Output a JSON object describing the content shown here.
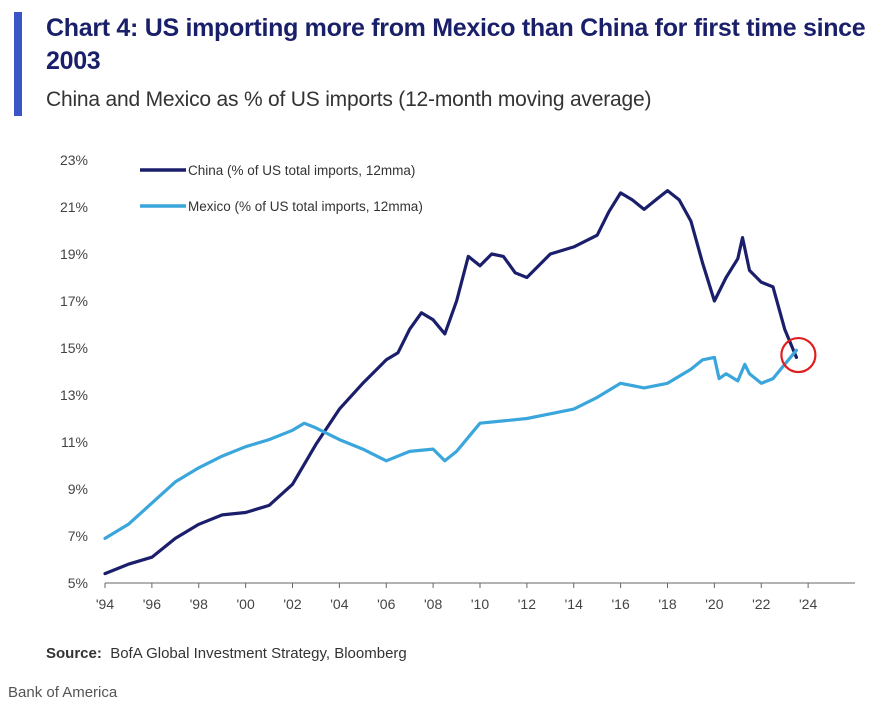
{
  "header": {
    "title": "Chart 4: US importing more from Mexico than China for first time since 2003",
    "subtitle": "China and Mexico as % of US imports (12-month moving average)"
  },
  "footer": {
    "source_label": "Source:",
    "source_text": "BofA Global Investment Strategy, Bloomberg",
    "credit": "Bank of America"
  },
  "colors": {
    "china": "#1b1f6b",
    "mexico": "#3aa6dc",
    "highlight": "#e01e1e",
    "accent": "#3a55c8"
  },
  "chart_data": {
    "type": "line",
    "title": "",
    "xlabel": "",
    "ylabel": "",
    "xlim": [
      1994,
      2026
    ],
    "ylim": [
      5,
      23
    ],
    "x_tick_labels": [
      "'94",
      "'96",
      "'98",
      "'00",
      "'02",
      "'04",
      "'06",
      "'08",
      "'10",
      "'12",
      "'14",
      "'16",
      "'18",
      "'20",
      "'22",
      "'24"
    ],
    "y_tick_labels": [
      "5%",
      "7%",
      "9%",
      "11%",
      "13%",
      "15%",
      "17%",
      "19%",
      "21%",
      "23%"
    ],
    "grid": false,
    "legend_position": "top-left",
    "series": [
      {
        "name": "China (% of US total imports, 12mma)",
        "color": "#1b1f6b",
        "x": [
          1994.0,
          1995.0,
          1996.0,
          1997.0,
          1998.0,
          1999.0,
          2000.0,
          2001.0,
          2002.0,
          2003.0,
          2004.0,
          2005.0,
          2006.0,
          2006.5,
          2007.0,
          2007.5,
          2008.0,
          2008.5,
          2009.0,
          2009.5,
          2010.0,
          2010.5,
          2011.0,
          2011.5,
          2012.0,
          2012.5,
          2013.0,
          2014.0,
          2015.0,
          2015.5,
          2016.0,
          2016.5,
          2017.0,
          2017.5,
          2018.0,
          2018.5,
          2019.0,
          2019.5,
          2020.0,
          2020.5,
          2021.0,
          2021.2,
          2021.5,
          2022.0,
          2022.5,
          2023.0,
          2023.5
        ],
        "y": [
          5.4,
          5.8,
          6.1,
          6.9,
          7.5,
          7.9,
          8.0,
          8.3,
          9.2,
          10.9,
          12.4,
          13.5,
          14.5,
          14.8,
          15.8,
          16.5,
          16.2,
          15.6,
          17.0,
          18.9,
          18.5,
          19.0,
          18.9,
          18.2,
          18.0,
          18.5,
          19.0,
          19.3,
          19.8,
          20.8,
          21.6,
          21.3,
          20.9,
          21.3,
          21.7,
          21.3,
          20.4,
          18.6,
          17.0,
          18.0,
          18.8,
          19.7,
          18.3,
          17.8,
          17.6,
          15.8,
          14.6
        ]
      },
      {
        "name": "Mexico (% of US total imports, 12mma)",
        "color": "#3aa6dc",
        "x": [
          1994.0,
          1995.0,
          1996.0,
          1997.0,
          1998.0,
          1999.0,
          2000.0,
          2001.0,
          2002.0,
          2002.5,
          2003.0,
          2004.0,
          2005.0,
          2006.0,
          2007.0,
          2008.0,
          2008.5,
          2009.0,
          2010.0,
          2011.0,
          2012.0,
          2013.0,
          2014.0,
          2015.0,
          2016.0,
          2017.0,
          2018.0,
          2019.0,
          2019.5,
          2020.0,
          2020.2,
          2020.5,
          2021.0,
          2021.3,
          2021.5,
          2022.0,
          2022.5,
          2023.0,
          2023.5
        ],
        "y": [
          6.9,
          7.5,
          8.4,
          9.3,
          9.9,
          10.4,
          10.8,
          11.1,
          11.5,
          11.8,
          11.6,
          11.1,
          10.7,
          10.2,
          10.6,
          10.7,
          10.2,
          10.6,
          11.8,
          11.9,
          12.0,
          12.2,
          12.4,
          12.9,
          13.5,
          13.3,
          13.5,
          14.1,
          14.5,
          14.6,
          13.7,
          13.9,
          13.6,
          14.3,
          13.9,
          13.5,
          13.7,
          14.3,
          14.9
        ]
      }
    ]
  }
}
